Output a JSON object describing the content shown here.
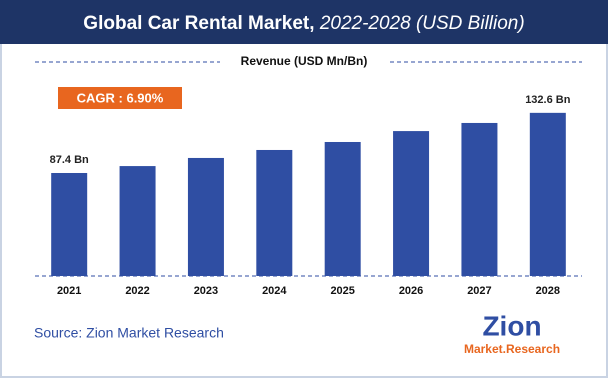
{
  "chart_data": {
    "type": "bar",
    "title": "Global Car Rental Market,",
    "title_period": "2022-2028 (USD Billion)",
    "y_label": "Revenue (USD Mn/Bn)",
    "annotation": "CAGR : 6.90%",
    "source": "Source: Zion Market Research",
    "logo_name": "Zion",
    "logo_sub": "Market.Research",
    "categories": [
      "2021",
      "2022",
      "2023",
      "2024",
      "2025",
      "2026",
      "2027",
      "2028"
    ],
    "values": [
      87.4,
      92.6,
      98.7,
      104.7,
      110.7,
      118.9,
      125.0,
      132.6
    ],
    "value_labels": [
      "87.4 Bn",
      null,
      null,
      null,
      null,
      null,
      null,
      "132.6 Bn"
    ],
    "color": "#2f4ea3",
    "ylim": [
      10,
      140
    ]
  }
}
